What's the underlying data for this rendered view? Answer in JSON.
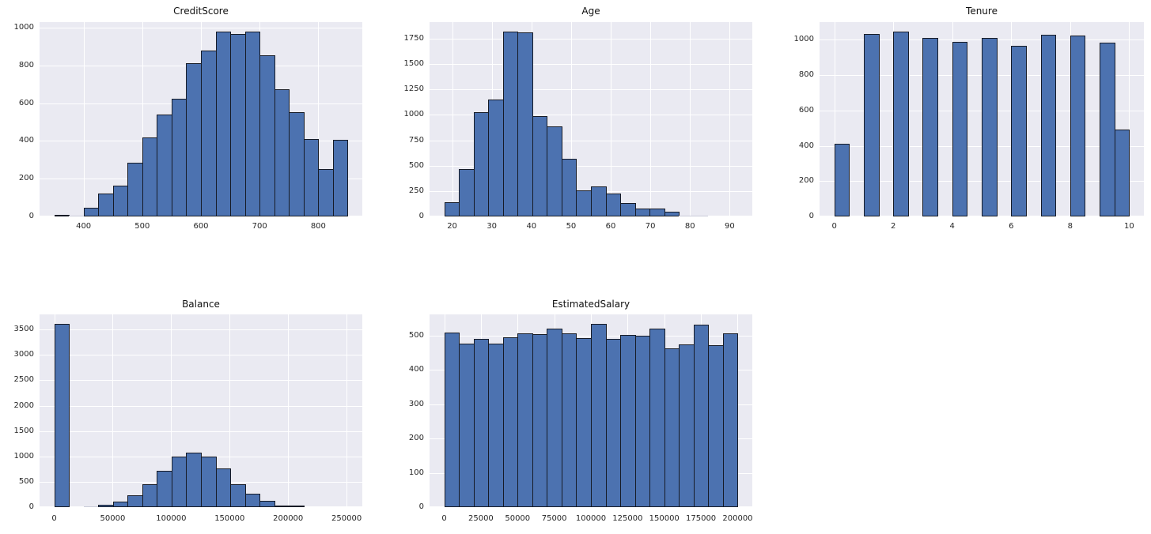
{
  "figure": {
    "background_color": "#ffffff",
    "axes_background_color": "#eaeaf2",
    "grid_color": "#ffffff",
    "bar_fill_color": "#4c72b0",
    "bar_edge_color": "#161b26",
    "tiny_bar_color": "#c9cbd8",
    "tick_label_color": "#262626",
    "title_color": "#101010"
  },
  "chart_data": [
    {
      "type": "bar",
      "subtype": "histogram",
      "title": "CreditScore",
      "bin_start": 350,
      "bin_end": 850,
      "values": [
        10,
        5,
        45,
        120,
        165,
        285,
        420,
        538,
        625,
        813,
        880,
        980,
        968,
        980,
        853,
        675,
        553,
        410,
        253,
        405
      ],
      "xlabel": "",
      "ylabel": "",
      "x_axis": {
        "min": 325,
        "max": 875,
        "ticks": [
          400,
          500,
          600,
          700,
          800
        ],
        "tick_labels": [
          "400",
          "500",
          "600",
          "700",
          "800"
        ]
      },
      "y_axis": {
        "min": 0,
        "max": 1029,
        "ticks": [
          0,
          200,
          400,
          600,
          800,
          1000
        ],
        "tick_labels": [
          "0",
          "200",
          "400",
          "600",
          "800",
          "1000"
        ]
      },
      "grid": true,
      "legend": false,
      "layout": {
        "row": 0,
        "col": 0
      }
    },
    {
      "type": "bar",
      "subtype": "histogram",
      "title": "Age",
      "bin_start": 18,
      "bin_end": 92,
      "values": [
        140,
        470,
        1030,
        1150,
        1822,
        1810,
        990,
        885,
        568,
        256,
        294,
        229,
        136,
        78,
        78,
        48,
        10,
        10,
        1,
        1
      ],
      "xlabel": "",
      "ylabel": "",
      "x_axis": {
        "min": 14.3,
        "max": 95.7,
        "ticks": [
          20,
          30,
          40,
          50,
          60,
          70,
          80,
          90
        ],
        "tick_labels": [
          "20",
          "30",
          "40",
          "50",
          "60",
          "70",
          "80",
          "90"
        ]
      },
      "y_axis": {
        "min": 0,
        "max": 1913,
        "ticks": [
          0,
          250,
          500,
          750,
          1000,
          1250,
          1500,
          1750
        ],
        "tick_labels": [
          "0",
          "250",
          "500",
          "750",
          "1000",
          "1250",
          "1500",
          "1750"
        ]
      },
      "grid": true,
      "legend": false,
      "layout": {
        "row": 0,
        "col": 1
      }
    },
    {
      "type": "bar",
      "subtype": "histogram",
      "title": "Tenure",
      "bin_start": 0,
      "bin_end": 10,
      "values": [
        413,
        0,
        1035,
        0,
        1048,
        0,
        1009,
        0,
        989,
        0,
        1012,
        0,
        967,
        0,
        1028,
        0,
        1025,
        0,
        984,
        490
      ],
      "xlabel": "",
      "ylabel": "",
      "x_axis": {
        "min": -0.5,
        "max": 10.5,
        "ticks": [
          0,
          2,
          4,
          6,
          8,
          10
        ],
        "tick_labels": [
          "0",
          "2",
          "4",
          "6",
          "8",
          "10"
        ]
      },
      "y_axis": {
        "min": 0,
        "max": 1100,
        "ticks": [
          0,
          200,
          400,
          600,
          800,
          1000
        ],
        "tick_labels": [
          "0",
          "200",
          "400",
          "600",
          "800",
          "1000"
        ]
      },
      "grid": true,
      "legend": false,
      "layout": {
        "row": 0,
        "col": 2
      }
    },
    {
      "type": "bar",
      "subtype": "histogram",
      "title": "Balance",
      "bin_start": 0,
      "bin_end": 250898,
      "values": [
        3618,
        0,
        15,
        50,
        110,
        240,
        458,
        718,
        1000,
        1075,
        1000,
        756,
        446,
        265,
        125,
        35,
        25,
        3,
        1,
        1
      ],
      "xlabel": "",
      "ylabel": "",
      "x_axis": {
        "min": -12545,
        "max": 263443,
        "ticks": [
          0,
          50000,
          100000,
          150000,
          200000,
          250000
        ],
        "tick_labels": [
          "0",
          "50000",
          "100000",
          "150000",
          "200000",
          "250000"
        ]
      },
      "y_axis": {
        "min": 0,
        "max": 3799,
        "ticks": [
          0,
          500,
          1000,
          1500,
          2000,
          2500,
          3000,
          3500
        ],
        "tick_labels": [
          "0",
          "500",
          "1000",
          "1500",
          "2000",
          "2500",
          "3000",
          "3500"
        ]
      },
      "grid": true,
      "legend": false,
      "layout": {
        "row": 1,
        "col": 0
      }
    },
    {
      "type": "bar",
      "subtype": "histogram",
      "title": "EstimatedSalary",
      "bin_start": 12,
      "bin_end": 199992,
      "values": [
        507,
        476,
        489,
        476,
        495,
        506,
        504,
        519,
        506,
        491,
        534,
        489,
        502,
        499,
        519,
        461,
        474,
        530,
        472,
        506
      ],
      "xlabel": "",
      "ylabel": "",
      "x_axis": {
        "min": -9987,
        "max": 209991,
        "ticks": [
          0,
          25000,
          50000,
          75000,
          100000,
          125000,
          150000,
          175000,
          200000
        ],
        "tick_labels": [
          "0",
          "25000",
          "50000",
          "75000",
          "100000",
          "125000",
          "150000",
          "175000",
          "200000"
        ]
      },
      "y_axis": {
        "min": 0,
        "max": 561,
        "ticks": [
          0,
          100,
          200,
          300,
          400,
          500
        ],
        "tick_labels": [
          "0",
          "100",
          "200",
          "300",
          "400",
          "500"
        ]
      },
      "grid": true,
      "legend": false,
      "layout": {
        "row": 1,
        "col": 1
      }
    }
  ]
}
